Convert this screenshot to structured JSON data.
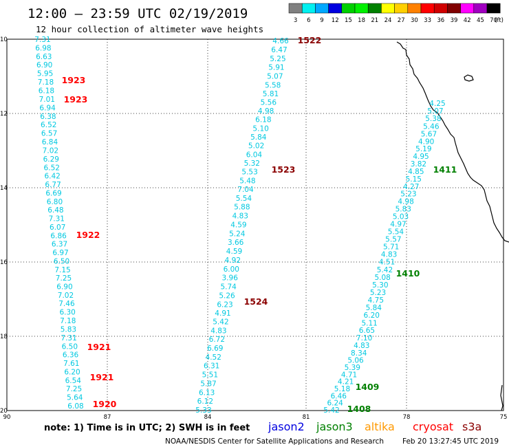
{
  "header": {
    "title": "12:00 – 23:59 UTC 02/19/2019",
    "subtitle": "12 hour collection of altimeter wave heights"
  },
  "colorbar": {
    "unit": "(ft)",
    "bins": [
      {
        "label": "3",
        "color": "#808080"
      },
      {
        "label": "6",
        "color": "#00f0f0"
      },
      {
        "label": "9",
        "color": "#00a8ff"
      },
      {
        "label": "12",
        "color": "#0000e0"
      },
      {
        "label": "15",
        "color": "#00d000"
      },
      {
        "label": "18",
        "color": "#00f000"
      },
      {
        "label": "21",
        "color": "#008000"
      },
      {
        "label": "24",
        "color": "#ffff00"
      },
      {
        "label": "27",
        "color": "#ffd000"
      },
      {
        "label": "30",
        "color": "#ff8000"
      },
      {
        "label": "33",
        "color": "#ff0000"
      },
      {
        "label": "36",
        "color": "#d00000"
      },
      {
        "label": "39",
        "color": "#800000"
      },
      {
        "label": "42",
        "color": "#ff00ff"
      },
      {
        "label": "45",
        "color": "#a000c0"
      },
      {
        "label": "70",
        "color": "#000000"
      }
    ]
  },
  "axes": {
    "lat_ticks": [
      "10",
      "12",
      "14",
      "16",
      "18",
      "20"
    ],
    "lon_ticks": [
      "90",
      "87",
      "84",
      "81",
      "78",
      "75"
    ],
    "lon_range": [
      -90,
      -75
    ],
    "lat_range": [
      10,
      20
    ]
  },
  "tracks": [
    {
      "id": "track-west",
      "color": "#00c8e0",
      "values": [
        "7.31",
        "6.98",
        "6.63",
        "6.90",
        "5.95",
        "7.18",
        "6.18",
        "7.01",
        "6.94",
        "6.38",
        "6.52",
        "6.57",
        "6.84",
        "7.02",
        "6.29",
        "6.52",
        "6.42",
        "6.77",
        "6.69",
        "6.80",
        "6.48",
        "7.31",
        "6.07",
        "6.86",
        "6.37",
        "6.97",
        "6.50",
        "7.15",
        "7.25",
        "6.90",
        "7.02",
        "7.46",
        "6.30",
        "7.18",
        "5.83",
        "7.31",
        "6.50",
        "6.36",
        "7.61",
        "6.20",
        "6.54",
        "7.25",
        "5.64",
        "6.08"
      ]
    },
    {
      "id": "track-middle",
      "color": "#00c8e0",
      "values": [
        "4.66",
        "6.47",
        "5.25",
        "5.91",
        "5.07",
        "5.58",
        "5.81",
        "5.56",
        "4.98",
        "6.18",
        "5.10",
        "5.84",
        "5.02",
        "6.04",
        "5.32",
        "5.53",
        "5.48",
        "7.04",
        "5.54",
        "5.88",
        "4.83",
        "4.59",
        "5.24",
        "3.66",
        "4.59",
        "4.92",
        "6.00",
        "3.96",
        "5.74",
        "5.26",
        "6.23",
        "4.91",
        "5.42",
        "4.83",
        "6.72",
        "6.69",
        "4.52",
        "6.31",
        "5.51",
        "5.87",
        "6.13",
        "6.12",
        "5.33"
      ]
    },
    {
      "id": "track-east",
      "color": "#00c8e0",
      "values": [
        "4.25",
        "5.07",
        "5.38",
        "5.46",
        "5.67",
        "4.90",
        "5.19",
        "4.95",
        "3.82",
        "4.85",
        "5.15",
        "4.27",
        "5.23",
        "4.98",
        "5.83",
        "5.03",
        "4.97",
        "5.54",
        "5.57",
        "5.71",
        "4.83",
        "4.51",
        "5.42",
        "5.08",
        "5.30",
        "5.23",
        "4.75",
        "5.84",
        "6.20",
        "5.11",
        "6.65",
        "7.10",
        "4.83",
        "8.34",
        "5.06",
        "5.39",
        "4.71",
        "4.21",
        "5.18",
        "6.46",
        "6.24",
        "5.42"
      ]
    }
  ],
  "time_labels": [
    {
      "text": "1522",
      "color": "#8b0000"
    },
    {
      "text": "1923",
      "color": "#ff0000"
    },
    {
      "text": "1923",
      "color": "#ff0000"
    },
    {
      "text": "1523",
      "color": "#8b0000"
    },
    {
      "text": "1411",
      "color": "#008000"
    },
    {
      "text": "1922",
      "color": "#ff0000"
    },
    {
      "text": "1410",
      "color": "#008000"
    },
    {
      "text": "1524",
      "color": "#8b0000"
    },
    {
      "text": "1921",
      "color": "#ff0000"
    },
    {
      "text": "1921",
      "color": "#ff0000"
    },
    {
      "text": "1409",
      "color": "#008000"
    },
    {
      "text": "1920",
      "color": "#ff0000"
    },
    {
      "text": "1408",
      "color": "#008000"
    }
  ],
  "footer": {
    "note": "note: 1) Time is in UTC; 2) SWH is in feet",
    "satellites": [
      {
        "name": "jason2",
        "color": "#0000e0"
      },
      {
        "name": "jason3",
        "color": "#008000"
      },
      {
        "name": "altika",
        "color": "#ff9900"
      },
      {
        "name": "cryosat",
        "color": "#ff0000"
      },
      {
        "name": "s3a",
        "color": "#8b0000"
      }
    ],
    "credit": "NOAA/NESDIS Center for Satellite Applications and Research",
    "timestamp": "Feb 20 13:27:45 UTC 2019"
  },
  "colors": {
    "background": "#ffffff",
    "map_border": "#000000",
    "grid": "#000000",
    "coastline": "#000000",
    "wave_text": "#00c8e0"
  }
}
